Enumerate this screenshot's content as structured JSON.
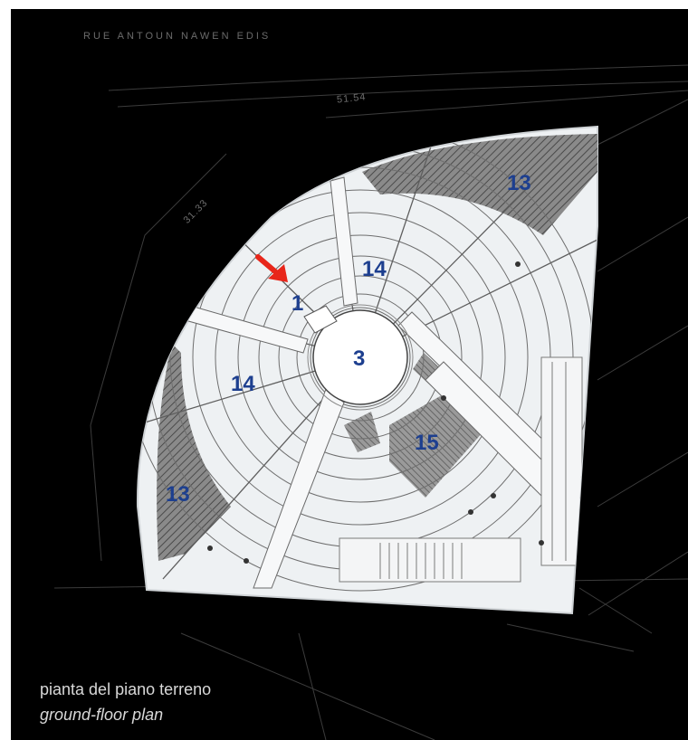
{
  "site": {
    "street_label": "RUE  ANTOUN  NAWEN  EDIS",
    "dimension_top": "51.54",
    "dimension_left": "31.33"
  },
  "plan": {
    "labels": [
      {
        "id": "13a",
        "text": "13"
      },
      {
        "id": "14a",
        "text": "14"
      },
      {
        "id": "1",
        "text": "1"
      },
      {
        "id": "3",
        "text": "3"
      },
      {
        "id": "14b",
        "text": "14"
      },
      {
        "id": "15",
        "text": "15"
      },
      {
        "id": "13b",
        "text": "13"
      }
    ],
    "label_color": "#1d3f8f",
    "arrow_color": "#e8261a"
  },
  "caption": {
    "italian": "pianta del piano terreno",
    "english": "ground-floor plan"
  },
  "colors": {
    "background": "#000000",
    "paper": "#eef1f3",
    "hatch": "#777777"
  }
}
